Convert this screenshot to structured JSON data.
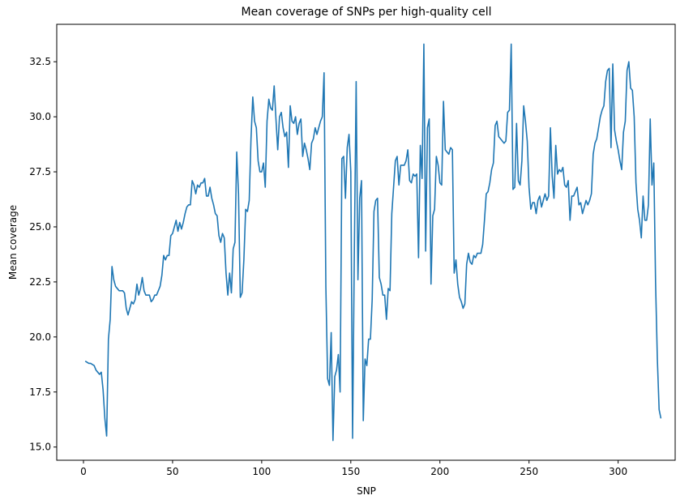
{
  "chart_data": {
    "type": "line",
    "title": "Mean coverage of SNPs per high-quality cell",
    "xlabel": "SNP",
    "ylabel": "Mean coverage",
    "color": "#1f77b4",
    "xlim": [
      -15,
      332
    ],
    "ylim": [
      14.4,
      34.2
    ],
    "xticks": [
      0,
      50,
      100,
      150,
      200,
      250,
      300
    ],
    "yticks": [
      {
        "value": 15,
        "label": "15.0"
      },
      17.5,
      {
        "value": 20,
        "label": "20.0"
      },
      22.5,
      {
        "value": 25,
        "label": "25.0"
      },
      27.5,
      {
        "value": 30,
        "label": "30.0"
      },
      32.5
    ],
    "x": [
      1,
      2,
      3,
      4,
      5,
      6,
      7,
      8,
      9,
      10,
      11,
      12,
      13,
      14,
      15,
      16,
      17,
      18,
      19,
      20,
      21,
      22,
      23,
      24,
      25,
      26,
      27,
      28,
      29,
      30,
      31,
      32,
      33,
      34,
      35,
      36,
      37,
      38,
      39,
      40,
      41,
      42,
      43,
      44,
      45,
      46,
      47,
      48,
      49,
      50,
      51,
      52,
      53,
      54,
      55,
      56,
      57,
      58,
      59,
      60,
      61,
      62,
      63,
      64,
      65,
      66,
      67,
      68,
      69,
      70,
      71,
      72,
      73,
      74,
      75,
      76,
      77,
      78,
      79,
      80,
      81,
      82,
      83,
      84,
      85,
      86,
      87,
      88,
      89,
      90,
      91,
      92,
      93,
      94,
      95,
      96,
      97,
      98,
      99,
      100,
      101,
      102,
      103,
      104,
      105,
      106,
      107,
      108,
      109,
      110,
      111,
      112,
      113,
      114,
      115,
      116,
      117,
      118,
      119,
      120,
      121,
      122,
      123,
      124,
      125,
      126,
      127,
      128,
      129,
      130,
      131,
      132,
      133,
      134,
      135,
      136,
      137,
      138,
      139,
      140,
      141,
      142,
      143,
      144,
      145,
      146,
      147,
      148,
      149,
      150,
      151,
      152,
      153,
      154,
      155,
      156,
      157,
      158,
      159,
      160,
      161,
      162,
      163,
      164,
      165,
      166,
      167,
      168,
      169,
      170,
      171,
      172,
      173,
      174,
      175,
      176,
      177,
      178,
      179,
      180,
      181,
      182,
      183,
      184,
      185,
      186,
      187,
      188,
      189,
      190,
      191,
      192,
      193,
      194,
      195,
      196,
      197,
      198,
      199,
      200,
      201,
      202,
      203,
      204,
      205,
      206,
      207,
      208,
      209,
      210,
      211,
      212,
      213,
      214,
      215,
      216,
      217,
      218,
      219,
      220,
      221,
      222,
      223,
      224,
      225,
      226,
      227,
      228,
      229,
      230,
      231,
      232,
      233,
      234,
      235,
      236,
      237,
      238,
      239,
      240,
      241,
      242,
      243,
      244,
      245,
      246,
      247,
      248,
      249,
      250,
      251,
      252,
      253,
      254,
      255,
      256,
      257,
      258,
      259,
      260,
      261,
      262,
      263,
      264,
      265,
      266,
      267,
      268,
      269,
      270,
      271,
      272,
      273,
      274,
      275,
      276,
      277,
      278,
      279,
      280,
      281,
      282,
      283,
      284,
      285,
      286,
      287,
      288,
      289,
      290,
      291,
      292,
      293,
      294,
      295,
      296,
      297,
      298,
      299,
      300,
      301,
      302,
      303,
      304,
      305,
      306,
      307,
      308,
      309,
      310,
      311,
      312,
      313,
      314,
      315,
      316,
      317,
      318,
      319,
      320,
      321,
      322,
      323,
      324
    ],
    "values": [
      18.9,
      18.85,
      18.8,
      18.8,
      18.75,
      18.7,
      18.5,
      18.4,
      18.3,
      18.4,
      17.6,
      16.3,
      15.5,
      19.9,
      20.8,
      23.2,
      22.6,
      22.3,
      22.2,
      22.1,
      22.1,
      22.1,
      22.0,
      21.3,
      21.0,
      21.3,
      21.6,
      21.5,
      21.7,
      22.4,
      21.9,
      22.2,
      22.7,
      22.1,
      21.9,
      21.9,
      21.9,
      21.6,
      21.7,
      21.9,
      21.9,
      22.1,
      22.3,
      22.8,
      23.7,
      23.5,
      23.7,
      23.7,
      24.6,
      24.7,
      25.0,
      25.3,
      24.8,
      25.2,
      24.9,
      25.2,
      25.6,
      25.9,
      26.0,
      26.0,
      27.1,
      26.9,
      26.5,
      26.9,
      26.8,
      27.0,
      27.0,
      27.2,
      26.4,
      26.4,
      26.8,
      26.3,
      26.0,
      25.6,
      25.5,
      24.6,
      24.3,
      24.7,
      24.5,
      22.9,
      21.9,
      22.9,
      22.0,
      24.0,
      24.3,
      28.4,
      26.5,
      21.8,
      22.0,
      23.5,
      25.8,
      25.7,
      26.2,
      29.0,
      30.9,
      29.8,
      29.5,
      28.0,
      27.5,
      27.5,
      27.9,
      26.8,
      29.8,
      30.8,
      30.4,
      30.3,
      31.4,
      29.9,
      28.5,
      30.0,
      30.2,
      29.5,
      29.1,
      29.3,
      27.7,
      30.5,
      29.8,
      29.7,
      30.0,
      29.2,
      29.7,
      29.9,
      28.2,
      28.8,
      28.5,
      28.1,
      27.6,
      28.8,
      29.0,
      29.5,
      29.2,
      29.5,
      29.8,
      30.0,
      32.0,
      22.3,
      18.1,
      17.8,
      20.2,
      15.3,
      18.2,
      18.5,
      19.2,
      17.5,
      28.1,
      28.2,
      26.3,
      28.6,
      29.2,
      27.5,
      15.4,
      24.0,
      31.6,
      22.6,
      26.3,
      27.1,
      16.2,
      19.0,
      18.7,
      19.9,
      19.9,
      21.7,
      25.7,
      26.2,
      26.3,
      22.7,
      22.4,
      21.9,
      21.9,
      20.8,
      22.2,
      22.1,
      25.6,
      26.8,
      28.0,
      28.2,
      26.9,
      27.8,
      27.8,
      27.8,
      28.0,
      28.5,
      27.1,
      27.0,
      27.4,
      27.3,
      27.4,
      23.6,
      28.7,
      27.2,
      33.3,
      23.9,
      29.5,
      29.9,
      22.4,
      25.5,
      25.8,
      28.2,
      27.8,
      27.0,
      26.9,
      30.7,
      28.5,
      28.4,
      28.3,
      28.6,
      28.5,
      22.9,
      23.5,
      22.4,
      21.8,
      21.6,
      21.3,
      21.5,
      23.3,
      23.8,
      23.4,
      23.3,
      23.7,
      23.6,
      23.8,
      23.8,
      23.8,
      24.2,
      25.3,
      26.5,
      26.6,
      27.0,
      27.6,
      27.9,
      29.6,
      29.8,
      29.1,
      29.0,
      28.9,
      28.8,
      28.9,
      30.2,
      30.3,
      33.3,
      26.7,
      26.8,
      29.7,
      27.1,
      26.9,
      28.0,
      30.5,
      29.8,
      28.9,
      26.8,
      25.8,
      26.1,
      26.1,
      25.6,
      26.2,
      26.4,
      25.9,
      26.2,
      26.5,
      26.2,
      26.4,
      29.5,
      27.3,
      26.3,
      28.7,
      27.4,
      27.6,
      27.5,
      27.7,
      26.9,
      26.8,
      27.1,
      25.3,
      26.4,
      26.4,
      26.6,
      26.8,
      26.0,
      26.1,
      25.6,
      25.9,
      26.2,
      26.0,
      26.2,
      26.5,
      28.3,
      28.8,
      29.0,
      29.5,
      30.0,
      30.3,
      30.5,
      31.6,
      32.1,
      32.2,
      28.6,
      32.4,
      29.4,
      28.9,
      28.5,
      28.0,
      27.6,
      29.3,
      29.8,
      32.1,
      32.5,
      31.3,
      31.2,
      30.0,
      27.0,
      25.8,
      25.3,
      24.5,
      26.4,
      25.3,
      25.3,
      26.0,
      29.9,
      26.9,
      27.9,
      22.5,
      19.0,
      16.7,
      16.3
    ]
  }
}
